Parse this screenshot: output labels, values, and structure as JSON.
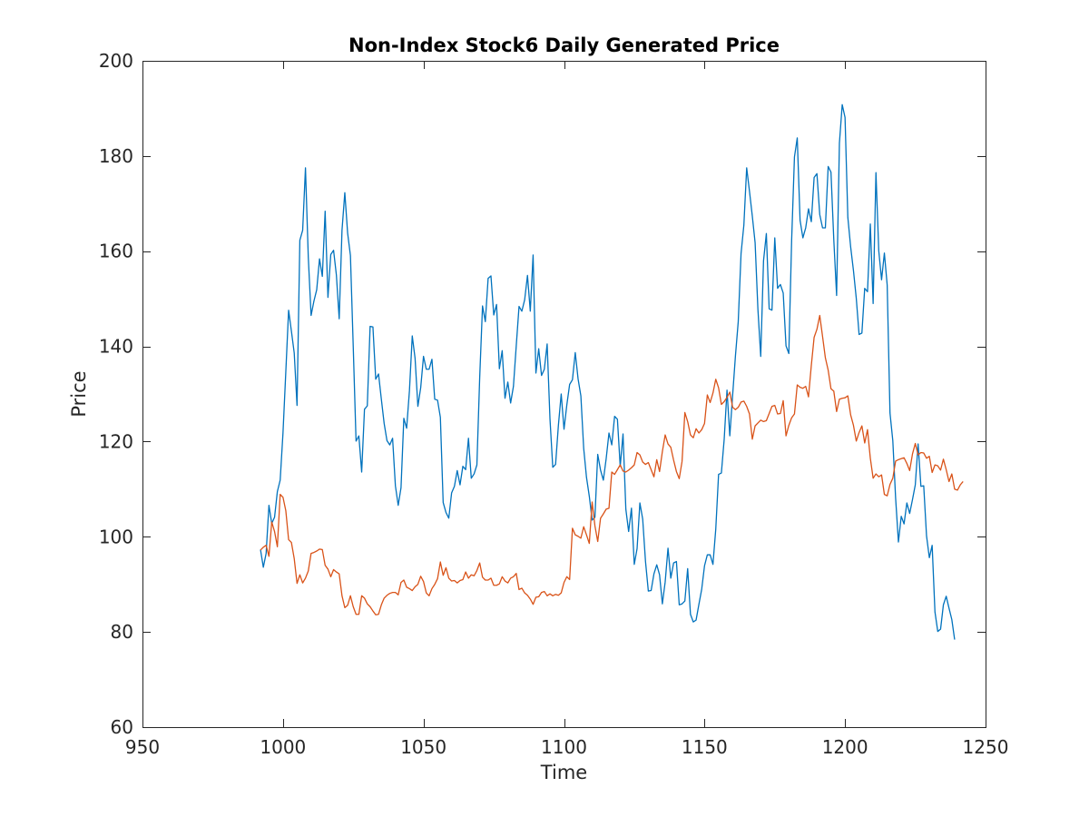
{
  "chart_data": {
    "type": "line",
    "title": "Non-Index Stock6 Daily Generated Price",
    "xlabel": "Time",
    "ylabel": "Price",
    "xlim": [
      950,
      1250
    ],
    "ylim": [
      60,
      200
    ],
    "xticks": [
      950,
      1000,
      1050,
      1100,
      1150,
      1200,
      1250
    ],
    "yticks": [
      60,
      80,
      100,
      120,
      140,
      160,
      180,
      200
    ],
    "grid": false,
    "legend": "none",
    "series": [
      {
        "color": "#0072BD",
        "x_start": 992,
        "x_step": 1,
        "values": [
          97.3,
          93.6,
          96.5,
          106.6,
          102.8,
          104.1,
          109.5,
          111.9,
          121.8,
          134.6,
          147.6,
          143.2,
          138.6,
          127.6,
          162.3,
          164.4,
          177.5,
          158.8,
          146.5,
          149.5,
          151.9,
          158.4,
          154.7,
          168.4,
          150.3,
          159.3,
          160.2,
          155.0,
          145.8,
          164.4,
          172.3,
          163.8,
          159.1,
          139.9,
          120.1,
          121.2,
          113.6,
          126.8,
          127.5,
          144.2,
          144.1,
          133.1,
          134.2,
          128.9,
          123.8,
          120.2,
          119.3,
          120.7,
          110.7,
          106.6,
          110.3,
          124.9,
          122.8,
          130.7,
          142.2,
          137.5,
          127.4,
          131.3,
          137.9,
          135.2,
          135.2,
          137.3,
          128.9,
          128.7,
          125.1,
          107.2,
          105.1,
          103.9,
          109.2,
          110.6,
          113.9,
          110.9,
          114.8,
          114.1,
          120.7,
          112.3,
          113.2,
          115.1,
          133.5,
          148.5,
          145.2,
          154.3,
          154.8,
          146.6,
          148.8,
          135.3,
          139.1,
          129.1,
          132.5,
          128.1,
          131.6,
          140.1,
          148.4,
          147.4,
          149.8,
          154.9,
          147.4,
          159.2,
          134.4,
          139.5,
          133.9,
          135.2,
          140.5,
          124.8,
          114.6,
          115.2,
          123.4,
          130.0,
          122.6,
          127.7,
          132.0,
          133.0,
          138.7,
          133.2,
          129.6,
          118.6,
          112.5,
          108.5,
          103.5,
          104.1,
          117.3,
          114.0,
          111.9,
          116.4,
          121.8,
          119.3,
          125.3,
          124.7,
          114.8,
          121.6,
          105.8,
          101.1,
          106.0,
          94.2,
          97.5,
          107.1,
          103.7,
          94.8,
          88.6,
          88.7,
          92.2,
          94.1,
          92.0,
          85.9,
          90.5,
          97.6,
          91.3,
          94.5,
          94.8,
          85.7,
          85.9,
          86.5,
          93.3,
          83.7,
          82.1,
          82.5,
          85.8,
          89.0,
          93.9,
          96.2,
          96.2,
          94.2,
          101.6,
          113.1,
          113.4,
          120.5,
          130.8,
          121.2,
          129.7,
          138.0,
          145.2,
          159.5,
          165.5,
          177.5,
          172.6,
          167.4,
          161.8,
          147.8,
          137.9,
          158.0,
          163.7,
          147.9,
          147.6,
          162.8,
          152.2,
          153.0,
          151.2,
          140.1,
          138.5,
          162.3,
          179.8,
          183.8,
          166.5,
          162.8,
          164.9,
          168.9,
          166.2,
          175.5,
          176.3,
          167.7,
          164.9,
          164.9,
          177.8,
          176.6,
          162.4,
          150.7,
          182.7,
          190.8,
          188.1,
          167.1,
          160.9,
          155.9,
          150.1,
          142.5,
          142.8,
          152.2,
          151.5,
          165.7,
          149.0,
          176.5,
          160.1,
          154.0,
          159.6,
          152.9,
          126.0,
          120.2,
          108.1,
          98.9,
          104.3,
          102.7,
          107.1,
          104.9,
          107.8,
          110.9,
          119.5,
          110.6,
          110.7,
          100.2,
          95.6,
          98.2,
          84.2,
          80.1,
          80.6,
          85.7,
          87.5,
          85.0,
          82.6,
          78.4
        ]
      },
      {
        "color": "#D95319",
        "x_start": 992,
        "x_step": 1,
        "values": [
          97.2,
          97.8,
          98.2,
          95.9,
          103.1,
          101.1,
          97.9,
          108.9,
          108.3,
          105.5,
          99.4,
          98.8,
          95.4,
          90.2,
          92.0,
          90.3,
          91.3,
          92.8,
          96.5,
          96.7,
          97.0,
          97.4,
          97.3,
          94.0,
          93.2,
          91.6,
          93.1,
          92.6,
          92.2,
          87.6,
          85.1,
          85.6,
          87.6,
          85.3,
          83.7,
          83.7,
          87.6,
          87.1,
          85.9,
          85.3,
          84.4,
          83.6,
          83.7,
          85.7,
          87.1,
          87.7,
          88.1,
          88.3,
          88.3,
          87.8,
          90.4,
          90.9,
          89.4,
          89.1,
          88.7,
          89.5,
          90.0,
          91.7,
          90.6,
          88.2,
          87.6,
          89.1,
          90.0,
          91.2,
          94.7,
          91.9,
          93.5,
          91.3,
          90.7,
          90.8,
          90.3,
          90.8,
          91.0,
          92.6,
          91.3,
          92.0,
          91.8,
          92.9,
          94.5,
          91.5,
          90.9,
          90.9,
          91.3,
          89.8,
          89.8,
          90.1,
          91.6,
          90.7,
          90.3,
          91.3,
          91.6,
          92.3,
          88.9,
          89.2,
          88.2,
          87.7,
          86.9,
          85.8,
          87.3,
          87.4,
          88.3,
          88.5,
          87.6,
          88.0,
          87.6,
          87.9,
          87.7,
          88.2,
          90.4,
          91.6,
          91.0,
          101.8,
          100.4,
          100.1,
          99.7,
          102.1,
          100.4,
          98.6,
          107.3,
          102.3,
          99.0,
          103.9,
          104.8,
          105.8,
          106.0,
          113.6,
          113.1,
          114.1,
          115.1,
          113.8,
          113.6,
          114.0,
          114.5,
          115.1,
          117.7,
          117.2,
          115.7,
          115.2,
          115.6,
          114.1,
          112.6,
          116.2,
          113.7,
          117.9,
          121.4,
          119.5,
          118.8,
          116.1,
          113.7,
          112.2,
          115.8,
          126.1,
          124.2,
          121.4,
          120.8,
          122.7,
          121.8,
          122.5,
          123.8,
          129.8,
          128.2,
          130.2,
          133.1,
          131.3,
          127.8,
          128.4,
          129.3,
          130.4,
          127.2,
          126.7,
          127.2,
          128.3,
          128.5,
          127.4,
          125.8,
          120.5,
          123.3,
          123.9,
          124.5,
          124.2,
          124.4,
          125.9,
          127.4,
          127.6,
          125.8,
          125.9,
          128.6,
          121.2,
          123.4,
          125.0,
          125.8,
          131.9,
          131.4,
          131.2,
          131.6,
          129.4,
          136.0,
          141.9,
          143.6,
          146.5,
          142.1,
          137.6,
          135.0,
          131.1,
          130.6,
          126.3,
          128.9,
          129.1,
          129.2,
          129.6,
          125.6,
          123.4,
          120.1,
          121.9,
          123.3,
          119.7,
          122.5,
          116.5,
          112.3,
          113.2,
          112.6,
          113.0,
          108.9,
          108.6,
          111.0,
          112.3,
          115.9,
          116.2,
          116.4,
          116.6,
          115.4,
          113.9,
          117.4,
          119.6,
          117.2,
          117.7,
          117.6,
          116.5,
          116.9,
          113.5,
          115.1,
          114.9,
          114.0,
          116.3,
          114.1,
          111.6,
          113.2,
          110.0,
          109.8,
          110.9,
          111.6
        ]
      }
    ]
  }
}
